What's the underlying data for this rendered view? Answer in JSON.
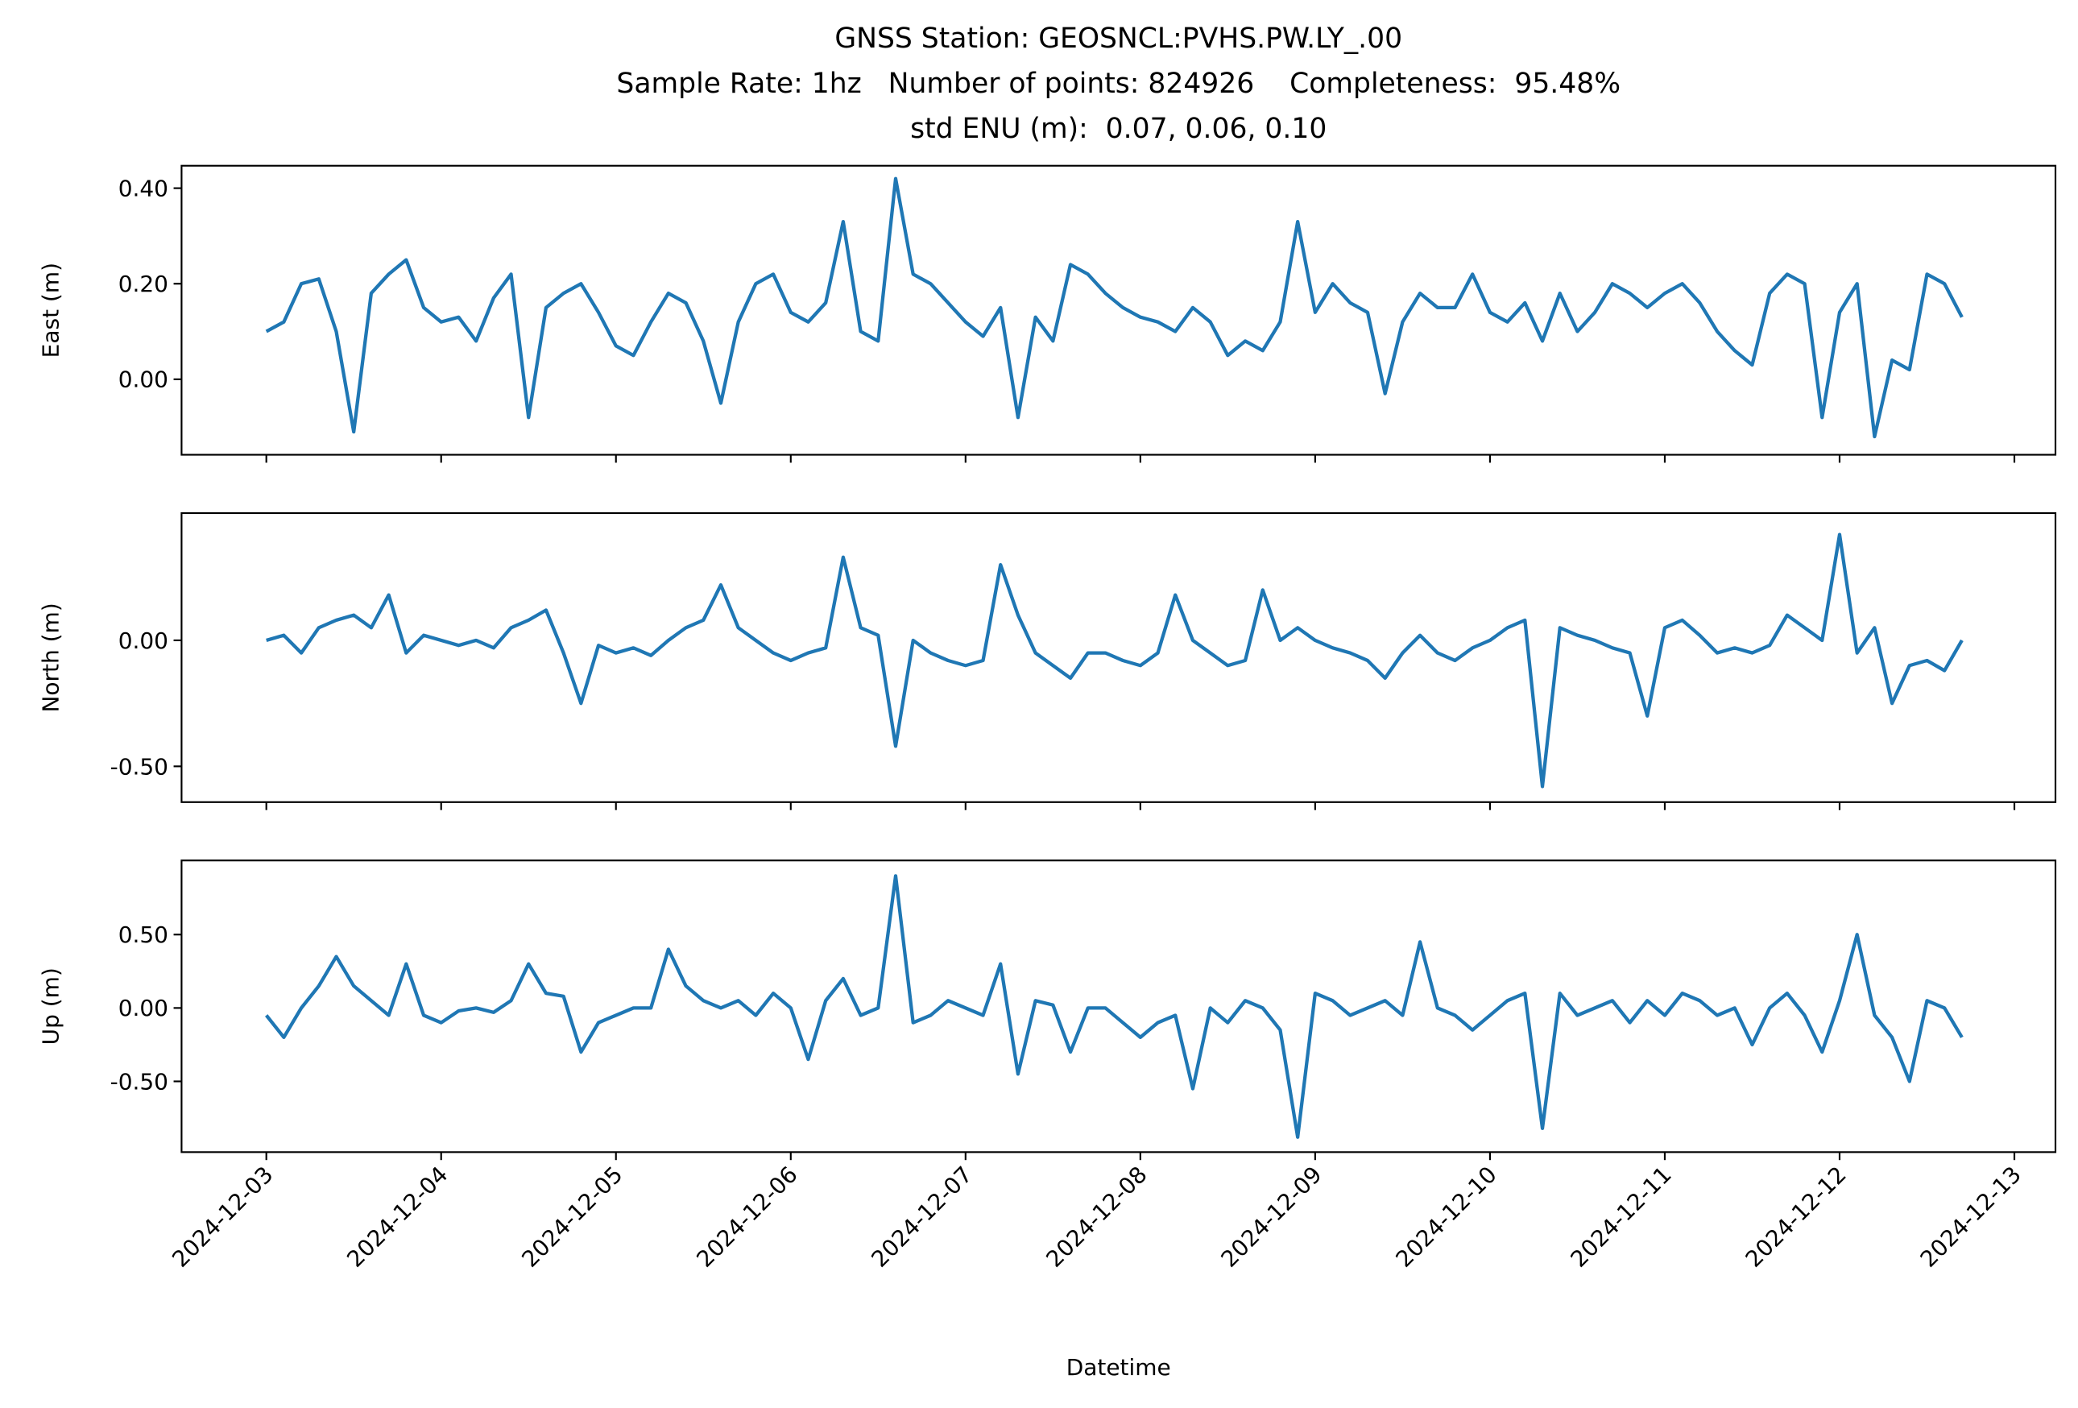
{
  "chart_data": {
    "type": "line",
    "title": [
      "GNSS Station: GEOSNCL:PVHS.PW.LY_.00",
      "Sample Rate: 1hz   Number of points: 824926    Completeness:  95.48%",
      "std ENU (m):  0.07, 0.06, 0.10"
    ],
    "xlabel": "Datetime",
    "xlim": [
      -0.485,
      10.235
    ],
    "xticks": [
      {
        "value": 0,
        "label": "2024-12-03"
      },
      {
        "value": 1,
        "label": "2024-12-04"
      },
      {
        "value": 2,
        "label": "2024-12-05"
      },
      {
        "value": 3,
        "label": "2024-12-06"
      },
      {
        "value": 4,
        "label": "2024-12-07"
      },
      {
        "value": 5,
        "label": "2024-12-08"
      },
      {
        "value": 6,
        "label": "2024-12-09"
      },
      {
        "value": 7,
        "label": "2024-12-10"
      },
      {
        "value": 8,
        "label": "2024-12-11"
      },
      {
        "value": 9,
        "label": "2024-12-12"
      },
      {
        "value": 10,
        "label": "2024-12-13"
      }
    ],
    "x": [
      0,
      0.1,
      0.2,
      0.3,
      0.4,
      0.5,
      0.6,
      0.7,
      0.8,
      0.9,
      1,
      1.1,
      1.2,
      1.3,
      1.4,
      1.5,
      1.6,
      1.7,
      1.8,
      1.9,
      2,
      2.1,
      2.2,
      2.3,
      2.4,
      2.5,
      2.6,
      2.7,
      2.8,
      2.9,
      3,
      3.1,
      3.2,
      3.3,
      3.4,
      3.5,
      3.6,
      3.7,
      3.8,
      3.9,
      4,
      4.1,
      4.2,
      4.3,
      4.4,
      4.5,
      4.6,
      4.7,
      4.8,
      4.9,
      5,
      5.1,
      5.2,
      5.3,
      5.4,
      5.5,
      5.6,
      5.7,
      5.8,
      5.9,
      6,
      6.1,
      6.2,
      6.3,
      6.4,
      6.5,
      6.6,
      6.7,
      6.8,
      6.9,
      7,
      7.1,
      7.2,
      7.3,
      7.4,
      7.5,
      7.6,
      7.7,
      7.8,
      7.9,
      8,
      8.1,
      8.2,
      8.3,
      8.4,
      8.5,
      8.6,
      8.7,
      8.8,
      8.9,
      9,
      9.1,
      9.2,
      9.3,
      9.4,
      9.5,
      9.6,
      9.7
    ],
    "panels": [
      {
        "ylabel": "East (m)",
        "color": "#1f77b4",
        "ylim": [
          -0.158,
          0.447
        ],
        "yticks": [
          {
            "value": 0,
            "label": "0.00"
          },
          {
            "value": 0.2,
            "label": "0.20"
          },
          {
            "value": 0.4,
            "label": "0.40"
          }
        ],
        "values": [
          0.1,
          0.12,
          0.2,
          0.21,
          0.1,
          -0.11,
          0.18,
          0.22,
          0.25,
          0.15,
          0.12,
          0.13,
          0.08,
          0.17,
          0.22,
          -0.08,
          0.15,
          0.18,
          0.2,
          0.14,
          0.07,
          0.05,
          0.12,
          0.18,
          0.16,
          0.08,
          -0.05,
          0.12,
          0.2,
          0.22,
          0.14,
          0.12,
          0.16,
          0.33,
          0.1,
          0.08,
          0.42,
          0.22,
          0.2,
          0.16,
          0.12,
          0.09,
          0.15,
          -0.08,
          0.13,
          0.08,
          0.24,
          0.22,
          0.18,
          0.15,
          0.13,
          0.12,
          0.1,
          0.15,
          0.12,
          0.05,
          0.08,
          0.06,
          0.12,
          0.33,
          0.14,
          0.2,
          0.16,
          0.14,
          -0.03,
          0.12,
          0.18,
          0.15,
          0.15,
          0.22,
          0.14,
          0.12,
          0.16,
          0.08,
          0.18,
          0.1,
          0.14,
          0.2,
          0.18,
          0.15,
          0.18,
          0.2,
          0.16,
          0.1,
          0.06,
          0.03,
          0.18,
          0.22,
          0.2,
          -0.08,
          0.14,
          0.2,
          -0.12,
          0.04,
          0.02,
          0.22,
          0.2,
          0.13
        ]
      },
      {
        "ylabel": "North (m)",
        "color": "#1f77b4",
        "ylim": [
          -0.642,
          0.505
        ],
        "yticks": [
          {
            "value": -0.5,
            "label": "-0.50"
          },
          {
            "value": 0,
            "label": "0.00"
          }
        ],
        "values": [
          0.0,
          0.02,
          -0.05,
          0.05,
          0.08,
          0.1,
          0.05,
          0.18,
          -0.05,
          0.02,
          0.0,
          -0.02,
          0.0,
          -0.03,
          0.05,
          0.08,
          0.12,
          -0.05,
          -0.25,
          -0.02,
          -0.05,
          -0.03,
          -0.06,
          0.0,
          0.05,
          0.08,
          0.22,
          0.05,
          0.0,
          -0.05,
          -0.08,
          -0.05,
          -0.03,
          0.33,
          0.05,
          0.02,
          -0.42,
          0.0,
          -0.05,
          -0.08,
          -0.1,
          -0.08,
          0.3,
          0.1,
          -0.05,
          -0.1,
          -0.15,
          -0.05,
          -0.05,
          -0.08,
          -0.1,
          -0.05,
          0.18,
          0.0,
          -0.05,
          -0.1,
          -0.08,
          0.2,
          0.0,
          0.05,
          0.0,
          -0.03,
          -0.05,
          -0.08,
          -0.15,
          -0.05,
          0.02,
          -0.05,
          -0.08,
          -0.03,
          0.0,
          0.05,
          0.08,
          -0.58,
          0.05,
          0.02,
          0.0,
          -0.03,
          -0.05,
          -0.3,
          0.05,
          0.08,
          0.02,
          -0.05,
          -0.03,
          -0.05,
          -0.02,
          0.1,
          0.05,
          0.0,
          0.42,
          -0.05,
          0.05,
          -0.25,
          -0.1,
          -0.08,
          -0.12,
          0.0
        ]
      },
      {
        "ylabel": "Up (m)",
        "color": "#1f77b4",
        "ylim": [
          -0.982,
          1.005
        ],
        "yticks": [
          {
            "value": -0.5,
            "label": "-0.50"
          },
          {
            "value": 0,
            "label": "0.00"
          },
          {
            "value": 0.5,
            "label": "0.50"
          }
        ],
        "values": [
          -0.05,
          -0.2,
          0.0,
          0.15,
          0.35,
          0.15,
          0.05,
          -0.05,
          0.3,
          -0.05,
          -0.1,
          -0.02,
          0.0,
          -0.03,
          0.05,
          0.3,
          0.1,
          0.08,
          -0.3,
          -0.1,
          -0.05,
          0.0,
          0.0,
          0.4,
          0.15,
          0.05,
          0.0,
          0.05,
          -0.05,
          0.1,
          0.0,
          -0.35,
          0.05,
          0.2,
          -0.05,
          0.0,
          0.9,
          -0.1,
          -0.05,
          0.05,
          0.0,
          -0.05,
          0.3,
          -0.45,
          0.05,
          0.02,
          -0.3,
          0.0,
          0.0,
          -0.1,
          -0.2,
          -0.1,
          -0.05,
          -0.55,
          0.0,
          -0.1,
          0.05,
          0.0,
          -0.15,
          -0.88,
          0.1,
          0.05,
          -0.05,
          0.0,
          0.05,
          -0.05,
          0.45,
          0.0,
          -0.05,
          -0.15,
          -0.05,
          0.05,
          0.1,
          -0.82,
          0.1,
          -0.05,
          0.0,
          0.05,
          -0.1,
          0.05,
          -0.05,
          0.1,
          0.05,
          -0.05,
          0.0,
          -0.25,
          0.0,
          0.1,
          -0.05,
          -0.3,
          0.05,
          0.5,
          -0.05,
          -0.2,
          -0.5,
          0.05,
          0.0,
          -0.2
        ]
      }
    ]
  }
}
